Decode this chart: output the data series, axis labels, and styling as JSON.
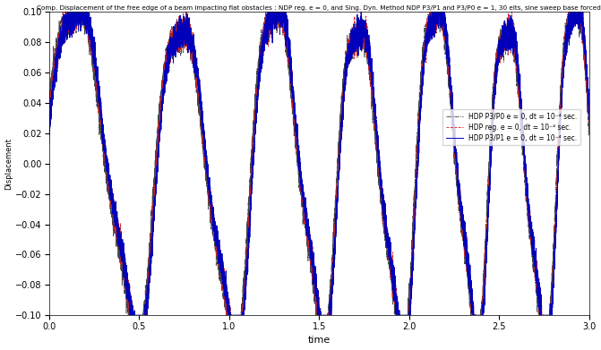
{
  "title": "Comp. Displacement of the free edge of a beam impacting flat obstacles : NDP reg. e = 0, and Sing. Dyn. Method NDP P3/P1 and P3/P0 e = 1, 30 elts, sine sweep base forced",
  "xlabel": "time",
  "ylabel": "Displacement",
  "xlim": [
    0,
    3
  ],
  "ylim": [
    -0.1,
    0.1
  ],
  "xticks": [
    0,
    0.5,
    1,
    1.5,
    2,
    2.5,
    3
  ],
  "yticks": [
    -0.1,
    -0.08,
    -0.06,
    -0.04,
    -0.02,
    0,
    0.02,
    0.04,
    0.06,
    0.08,
    0.1
  ],
  "legend": [
    {
      "label": "HDP P3/P1 e = 0, dt = 10⁻⁴ sec.",
      "color": "#0000bb",
      "linestyle": "-",
      "linewidth": 0.7
    },
    {
      "label": "HDP reg. e = 0, dt = 10⁻⁴ sec.",
      "color": "#cc2222",
      "linestyle": "--",
      "linewidth": 0.6
    },
    {
      "label": "HDP P3/P0 e = 0, dt = 10⁻⁴ sec.",
      "color": "#444444",
      "linestyle": "-.",
      "linewidth": 0.6
    }
  ],
  "background_color": "#ffffff",
  "figsize": [
    6.71,
    3.91
  ],
  "dpi": 100
}
